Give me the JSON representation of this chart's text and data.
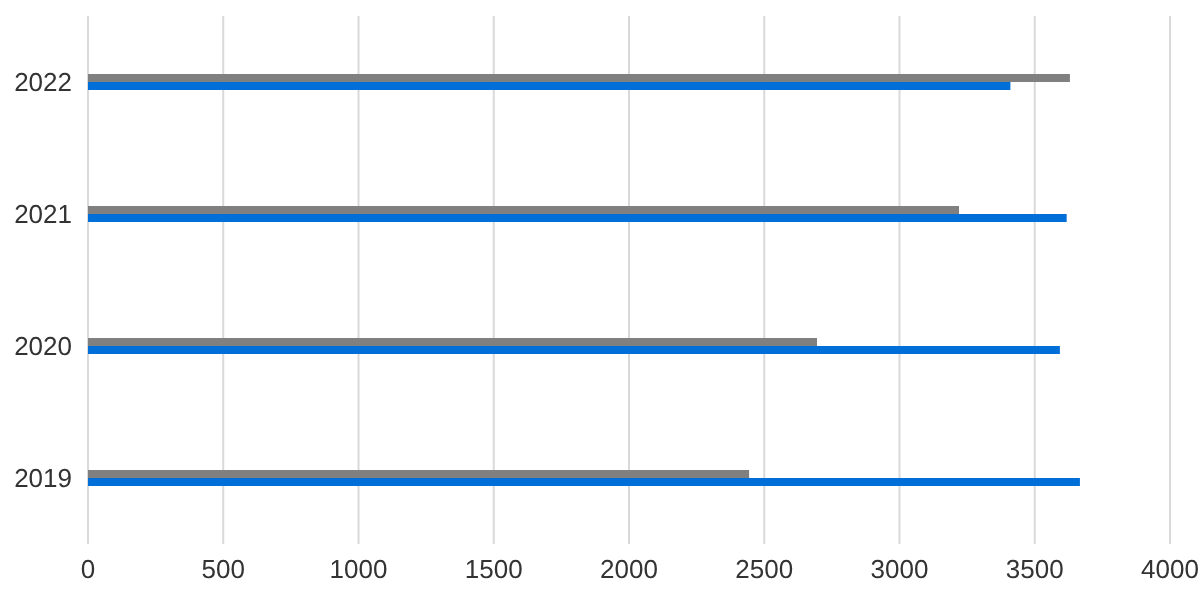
{
  "chart_data": {
    "type": "bar",
    "orientation": "horizontal",
    "categories": [
      "2022",
      "2021",
      "2020",
      "2019"
    ],
    "series": [
      {
        "color": "#808080",
        "values": [
          3630,
          3220,
          2695,
          2444
        ]
      },
      {
        "color": "#0070d8",
        "values": [
          3410,
          3618,
          3593,
          3667
        ]
      }
    ],
    "xlim": [
      0,
      4000
    ],
    "xticks": [
      0,
      500,
      1000,
      1500,
      2000,
      2500,
      3000,
      3500,
      4000
    ],
    "grid": "x",
    "legend": false
  }
}
